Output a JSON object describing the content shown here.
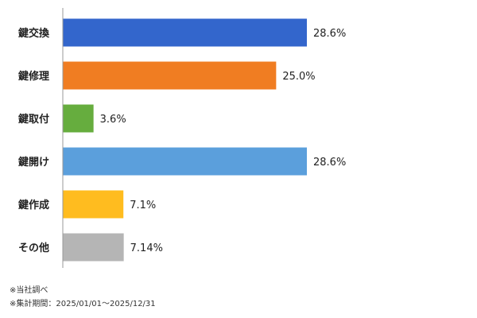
{
  "chart_data": {
    "type": "bar",
    "orientation": "horizontal",
    "categories": [
      "鍵交換",
      "鍵修理",
      "鍵取付",
      "鍵開け",
      "鍵作成",
      "その他"
    ],
    "values": [
      28.6,
      25.0,
      3.6,
      28.6,
      7.1,
      7.14
    ],
    "value_labels": [
      "28.6%",
      "25.0%",
      "3.6%",
      "28.6%",
      "7.1%",
      "7.14%"
    ],
    "colors": [
      "#3366cc",
      "#f07d22",
      "#66ad3e",
      "#5b9fdc",
      "#ffbc1f",
      "#b5b5b5"
    ],
    "xlim": [
      0,
      30
    ],
    "grid": false,
    "legend": "none"
  },
  "notes": {
    "source": "※当社調べ",
    "period": "※集計期間：2025/01/01～2025/12/31"
  }
}
